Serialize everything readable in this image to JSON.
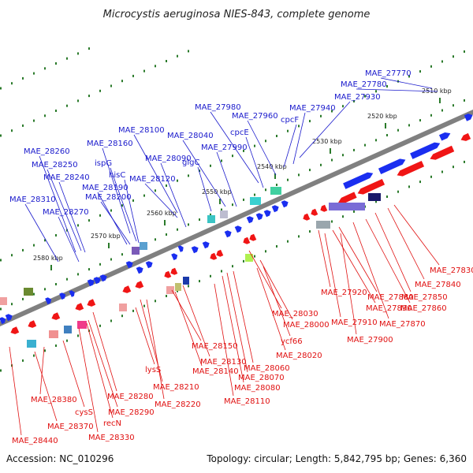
{
  "title": "Microcystis aeruginosa NIES-843, complete genome",
  "footer": {
    "accession": "Accession: NC_010296",
    "summary": "Topology: circular; Length: 5,842,795 bp; Genes: 6,360"
  },
  "colors": {
    "forward_label": "#1a1acc",
    "reverse_label": "#e01010",
    "forward_arrow": "#1a2ef0",
    "reverse_arrow": "#f01515",
    "backbone": "#808080",
    "dots": "#2a7a2a"
  },
  "kbp_ticks": [
    "2510 kbp",
    "2520 kbp",
    "2530 kbp",
    "2540 kbp",
    "2550 kbp",
    "2560 kbp",
    "2570 kbp",
    "2580 kbp"
  ],
  "forward_labels": [
    "MAE_27770",
    "MAE_27780",
    "MAE_27930",
    "MAE_27940",
    "MAE_27980",
    "cpcF",
    "MAE_27960",
    "cpcE",
    "MAE_28100",
    "MAE_28040",
    "MAE_27990",
    "MAE_28160",
    "MAE_28090",
    "glgC",
    "MAE_28260",
    "ispG",
    "MAE_28250",
    "hisC",
    "MAE_28120",
    "MAE_28240",
    "MAE_28190",
    "MAE_28200",
    "MAE_28310",
    "MAE_28270"
  ],
  "reverse_labels": [
    "MAE_27830",
    "MAE_27840",
    "MAE_27920",
    "MAE_27850",
    "MAE_27880",
    "MAE_27860",
    "MAE_27890",
    "MAE_28030",
    "MAE_27910",
    "MAE_27870",
    "MAE_28000",
    "MAE_27900",
    "ycf66",
    "MAE_28020",
    "MAE_28150",
    "MAE_28130",
    "MAE_28060",
    "MAE_28140",
    "MAE_28070",
    "lysS",
    "MAE_28080",
    "MAE_28210",
    "MAE_28280",
    "MAE_28110",
    "MAE_28220",
    "MAE_28380",
    "MAE_28290",
    "cysS",
    "recN",
    "MAE_28370",
    "MAE_28330",
    "MAE_28440"
  ]
}
